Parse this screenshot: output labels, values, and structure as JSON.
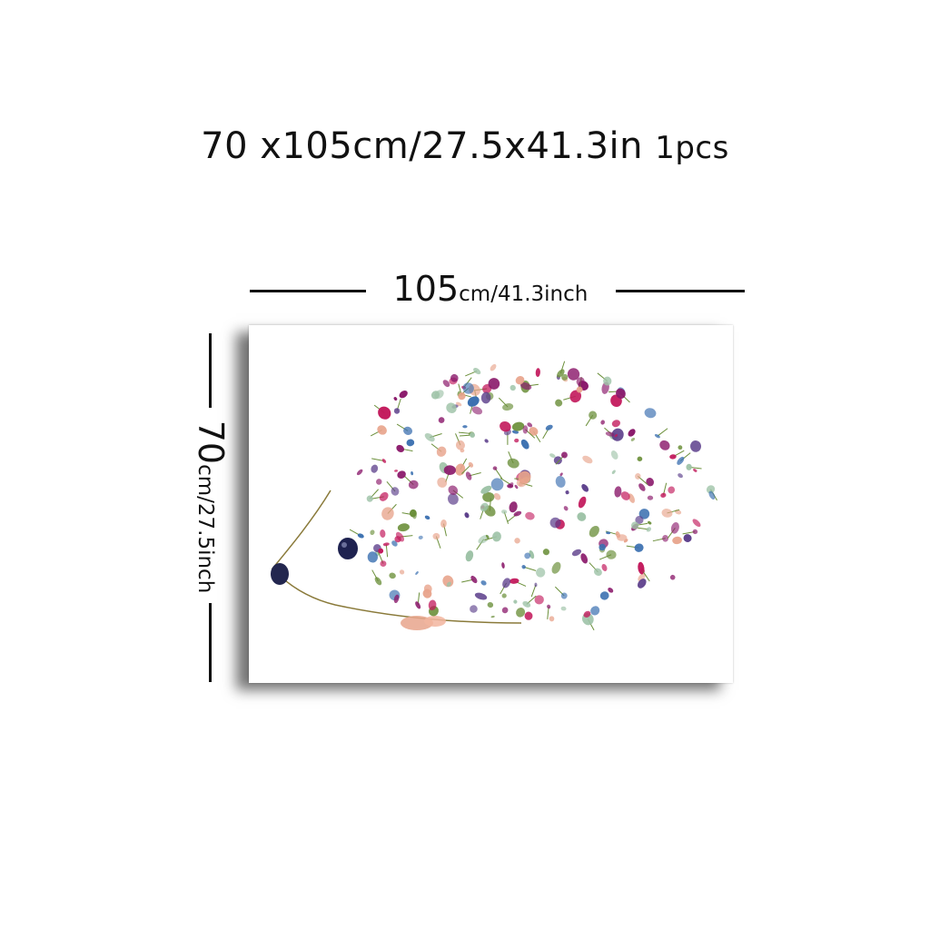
{
  "header": {
    "size_text": "70 x105cm/27.5x41.3in",
    "quantity": "1pcs"
  },
  "width_dimension": {
    "value": "105",
    "unit_text": "cm/41.3inch"
  },
  "height_dimension": {
    "value": "70",
    "unit_text": "cm/27.5inch"
  },
  "artwork": {
    "subject_icon": "floral-hedgehog-icon",
    "colors": [
      "#8b1a6b",
      "#c2185b",
      "#3a6fb0",
      "#e8a48c",
      "#6b8f3a",
      "#5b3d8a",
      "#9fc3a8"
    ]
  }
}
